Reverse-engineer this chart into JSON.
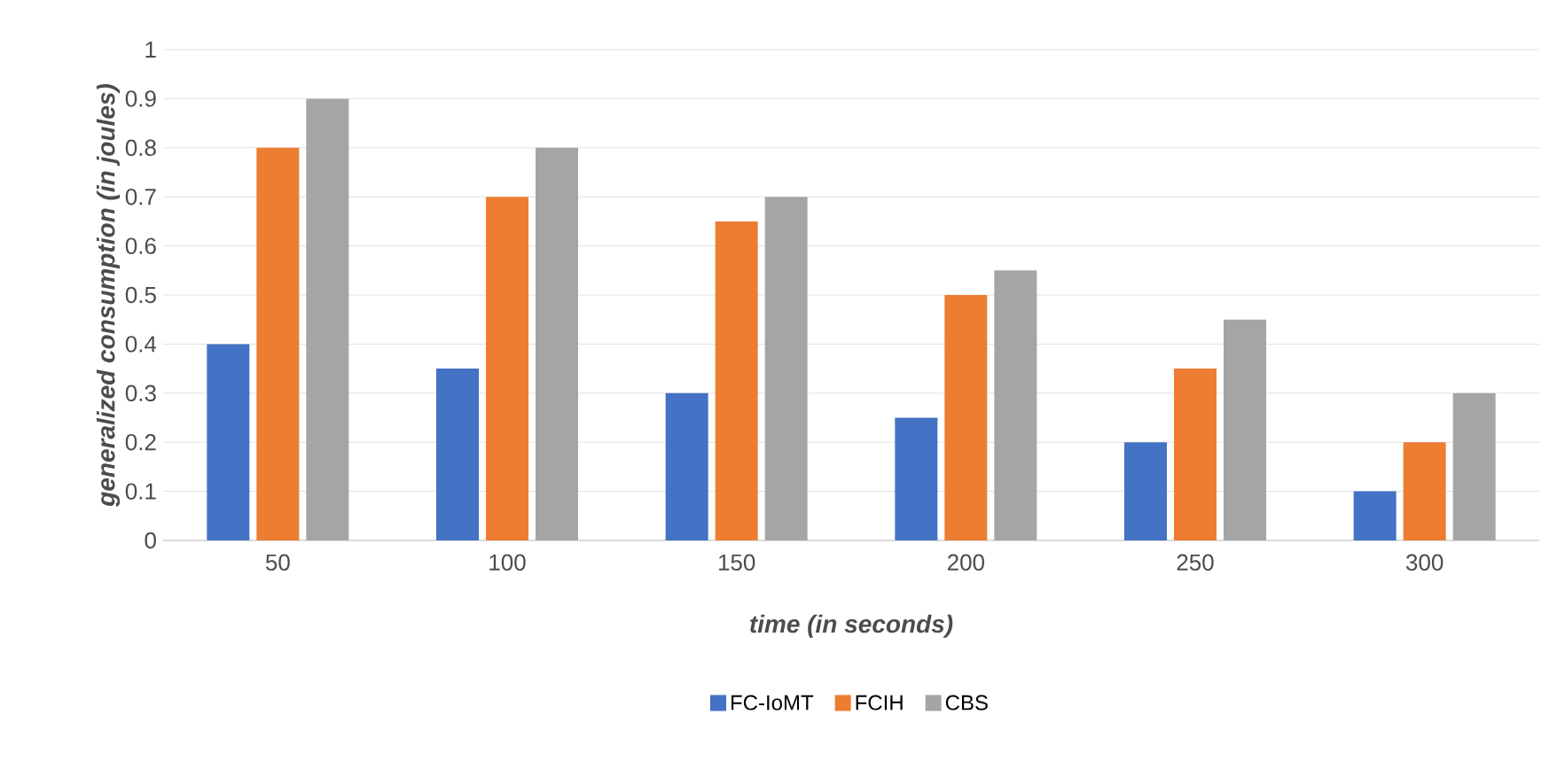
{
  "chart_data": {
    "type": "bar",
    "categories": [
      "50",
      "100",
      "150",
      "200",
      "250",
      "300"
    ],
    "series": [
      {
        "name": "FC-IoMT",
        "color": "#4472c4",
        "values": [
          0.4,
          0.35,
          0.3,
          0.25,
          0.2,
          0.1
        ]
      },
      {
        "name": "FCIH",
        "color": "#ed7d31",
        "values": [
          0.8,
          0.7,
          0.65,
          0.5,
          0.35,
          0.2
        ]
      },
      {
        "name": "CBS",
        "color": "#a5a5a5",
        "values": [
          0.9,
          0.8,
          0.7,
          0.55,
          0.45,
          0.3
        ]
      }
    ],
    "xlabel": "time (in seconds)",
    "ylabel": "generalized consumption (in joules)",
    "ylim": [
      0,
      1
    ],
    "yticks": [
      0,
      0.1,
      0.2,
      0.3,
      0.4,
      0.5,
      0.6,
      0.7,
      0.8,
      0.9,
      1
    ],
    "grid": "y",
    "legend": "bottom"
  }
}
